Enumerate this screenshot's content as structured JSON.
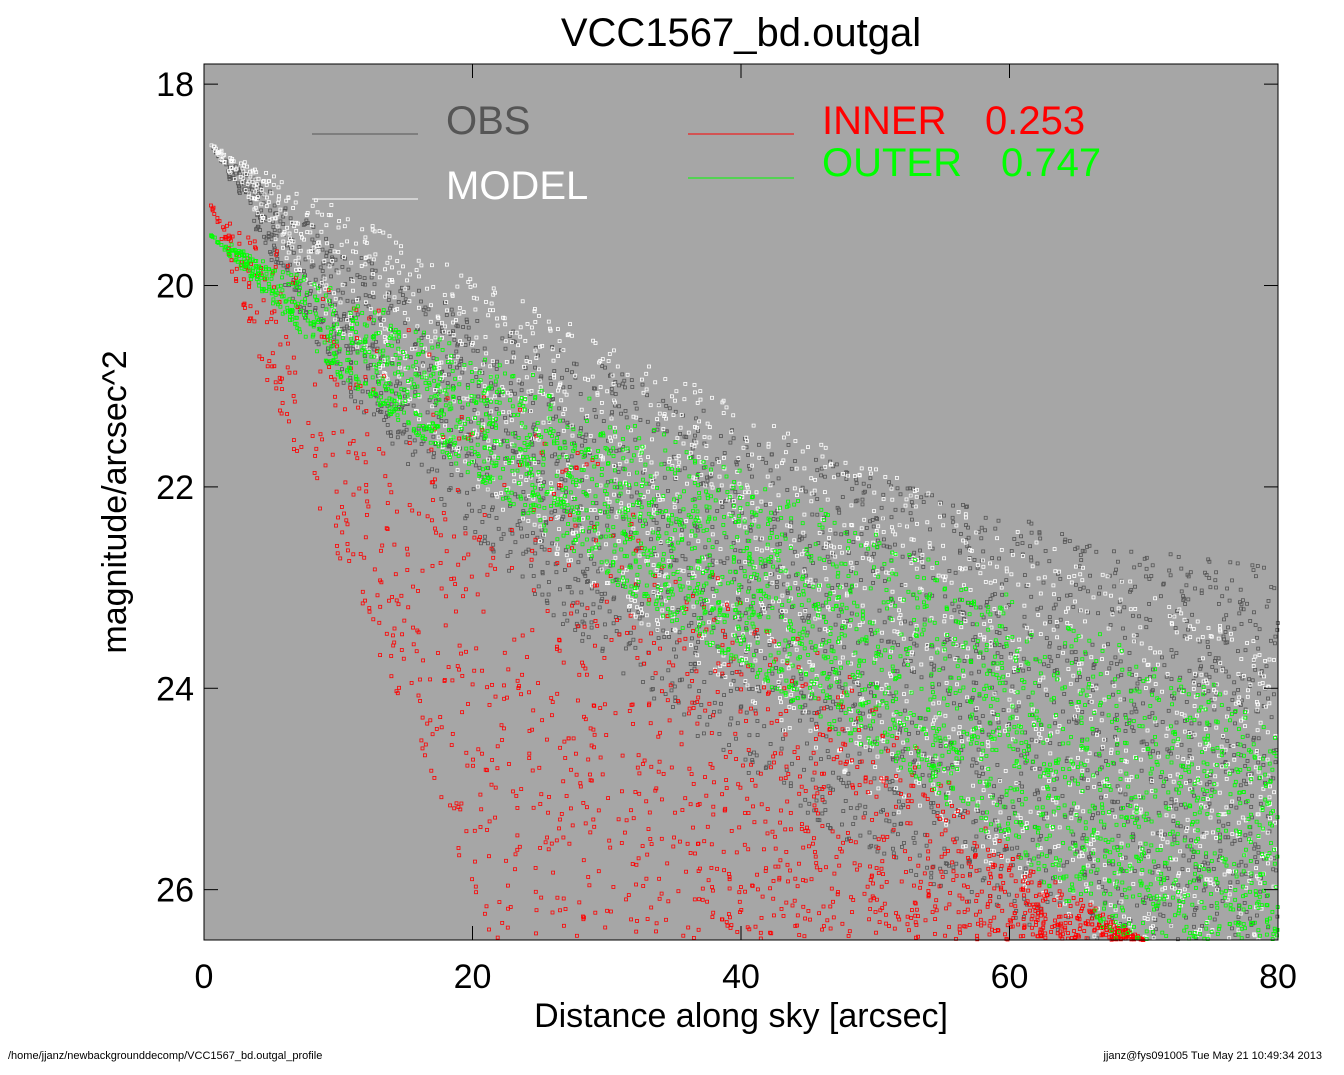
{
  "chart_data": {
    "type": "scatter",
    "title": "VCC1567_bd.outgal",
    "xlabel": "Distance along sky [arcsec]",
    "ylabel": "magnitude/arcsec^2",
    "xlim": [
      0,
      80
    ],
    "ylim": [
      26.5,
      17.8
    ],
    "y_inverted": true,
    "x_ticks": [
      0,
      20,
      40,
      60,
      80
    ],
    "y_ticks": [
      18,
      20,
      22,
      24,
      26
    ],
    "background": "#a6a6a6",
    "legend": [
      {
        "name": "OBS",
        "color": "#555555"
      },
      {
        "name": "MODEL",
        "color": "#ffffff"
      },
      {
        "name": "INNER",
        "value": "0.253",
        "color": "#ff0000"
      },
      {
        "name": "OUTER",
        "value": "0.747",
        "color": "#00ff00"
      }
    ],
    "series": [
      {
        "name": "OBS",
        "color": "#555555",
        "envelope_upper": [
          [
            0.5,
            18.6
          ],
          [
            10,
            19.6
          ],
          [
            20,
            20.3
          ],
          [
            30,
            20.8
          ],
          [
            40,
            21.4
          ],
          [
            50,
            21.9
          ],
          [
            60,
            22.3
          ],
          [
            70,
            22.6
          ],
          [
            80,
            22.8
          ]
        ],
        "envelope_lower": [
          [
            0.5,
            18.6
          ],
          [
            10,
            21.0
          ],
          [
            20,
            22.5
          ],
          [
            30,
            23.8
          ],
          [
            40,
            24.8
          ],
          [
            50,
            25.7
          ],
          [
            60,
            26.3
          ],
          [
            66,
            26.5
          ]
        ]
      },
      {
        "name": "MODEL",
        "color": "#ffffff",
        "envelope_upper": [
          [
            0.5,
            18.6
          ],
          [
            20,
            19.9
          ],
          [
            40,
            21.2
          ],
          [
            60,
            22.4
          ],
          [
            80,
            23.6
          ]
        ],
        "envelope_lower": [
          [
            0.5,
            18.6
          ],
          [
            10,
            20.5
          ],
          [
            20,
            22.0
          ],
          [
            30,
            23.1
          ],
          [
            40,
            24.1
          ],
          [
            50,
            25.1
          ],
          [
            60,
            25.9
          ],
          [
            66,
            26.5
          ]
        ]
      },
      {
        "name": "INNER",
        "color": "#ff0000",
        "envelope_upper": [
          [
            0.5,
            19.2
          ],
          [
            10,
            19.9
          ],
          [
            20,
            20.8
          ],
          [
            30,
            21.8
          ],
          [
            40,
            22.9
          ],
          [
            50,
            24.1
          ],
          [
            60,
            25.6
          ],
          [
            70,
            26.5
          ]
        ],
        "envelope_lower": [
          [
            0.5,
            19.2
          ],
          [
            5,
            21.1
          ],
          [
            10,
            22.7
          ],
          [
            15,
            24.3
          ],
          [
            20,
            26.0
          ],
          [
            21,
            26.5
          ]
        ]
      },
      {
        "name": "OUTER",
        "color": "#00ff00",
        "envelope_upper": [
          [
            0.5,
            19.5
          ],
          [
            20,
            20.6
          ],
          [
            40,
            21.8
          ],
          [
            60,
            23.0
          ],
          [
            80,
            24.2
          ]
        ],
        "envelope_lower": [
          [
            0.5,
            19.5
          ],
          [
            10,
            20.9
          ],
          [
            20,
            21.9
          ],
          [
            30,
            22.9
          ],
          [
            40,
            23.8
          ],
          [
            50,
            24.7
          ],
          [
            60,
            25.6
          ],
          [
            67,
            26.5
          ]
        ]
      }
    ]
  },
  "footer": {
    "left": "/home/jjanz/newbackgrounddecomp/VCC1567_bd.outgal_profile",
    "right": "jjanz@fys091005  Tue May 21 10:49:34 2013"
  }
}
